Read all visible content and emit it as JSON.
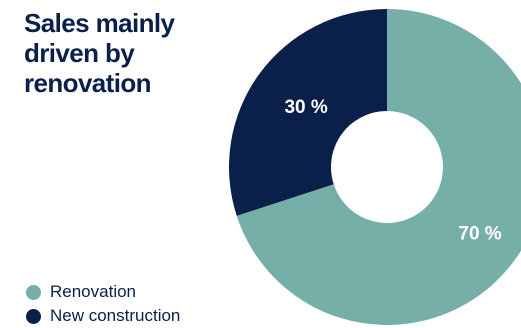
{
  "chart_data": {
    "type": "pie",
    "style": "donut",
    "title": "Sales mainly driven by renovation",
    "categories": [
      "Renovation",
      "New construction"
    ],
    "values": [
      70,
      30
    ],
    "value_labels": [
      "70 %",
      "30 %"
    ],
    "unit": "%",
    "colors": [
      "#76aea8",
      "#0b1f4b"
    ],
    "legend_position": "bottom-left"
  }
}
